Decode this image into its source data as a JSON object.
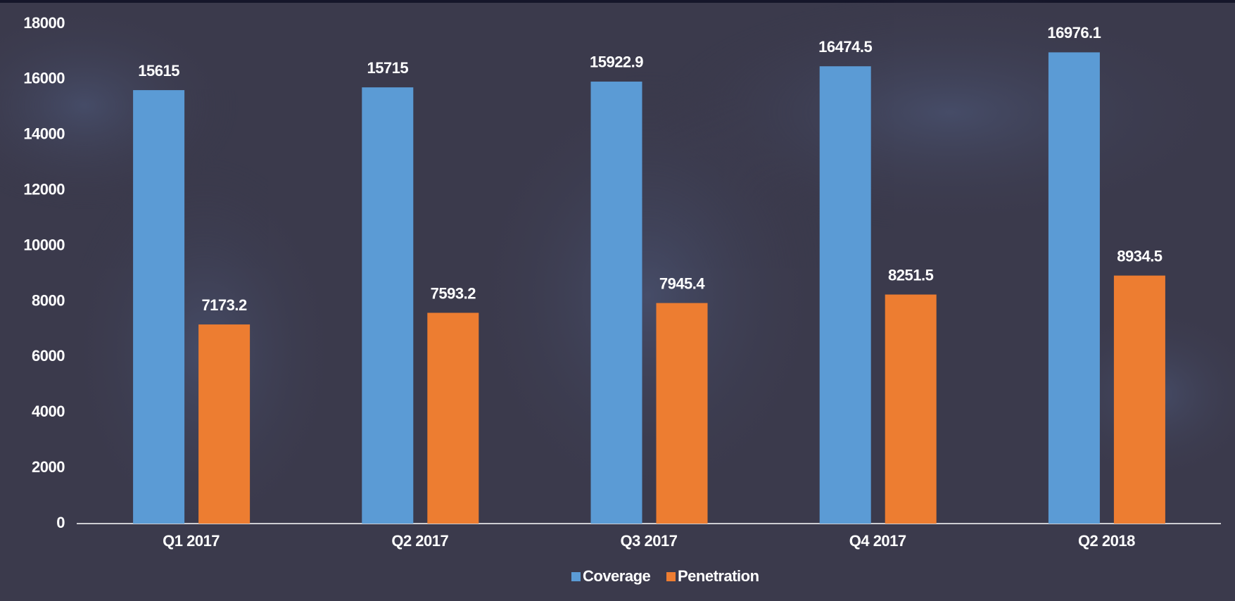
{
  "chart_data": {
    "type": "bar",
    "categories": [
      "Q1 2017",
      "Q2 2017",
      "Q3 2017",
      "Q4 2017",
      "Q2 2018"
    ],
    "series": [
      {
        "name": "Coverage",
        "color": "#5b9bd5",
        "values": [
          15615,
          15715,
          15922.9,
          16474.5,
          16976.1
        ]
      },
      {
        "name": "Penetration",
        "color": "#ed7d31",
        "values": [
          7173.2,
          7593.2,
          7945.4,
          8251.5,
          8934.5
        ]
      }
    ],
    "ylim": [
      0,
      18000
    ],
    "yticks": [
      0,
      2000,
      4000,
      6000,
      8000,
      10000,
      12000,
      14000,
      16000,
      18000
    ],
    "grid": false,
    "legend": "bottom"
  }
}
